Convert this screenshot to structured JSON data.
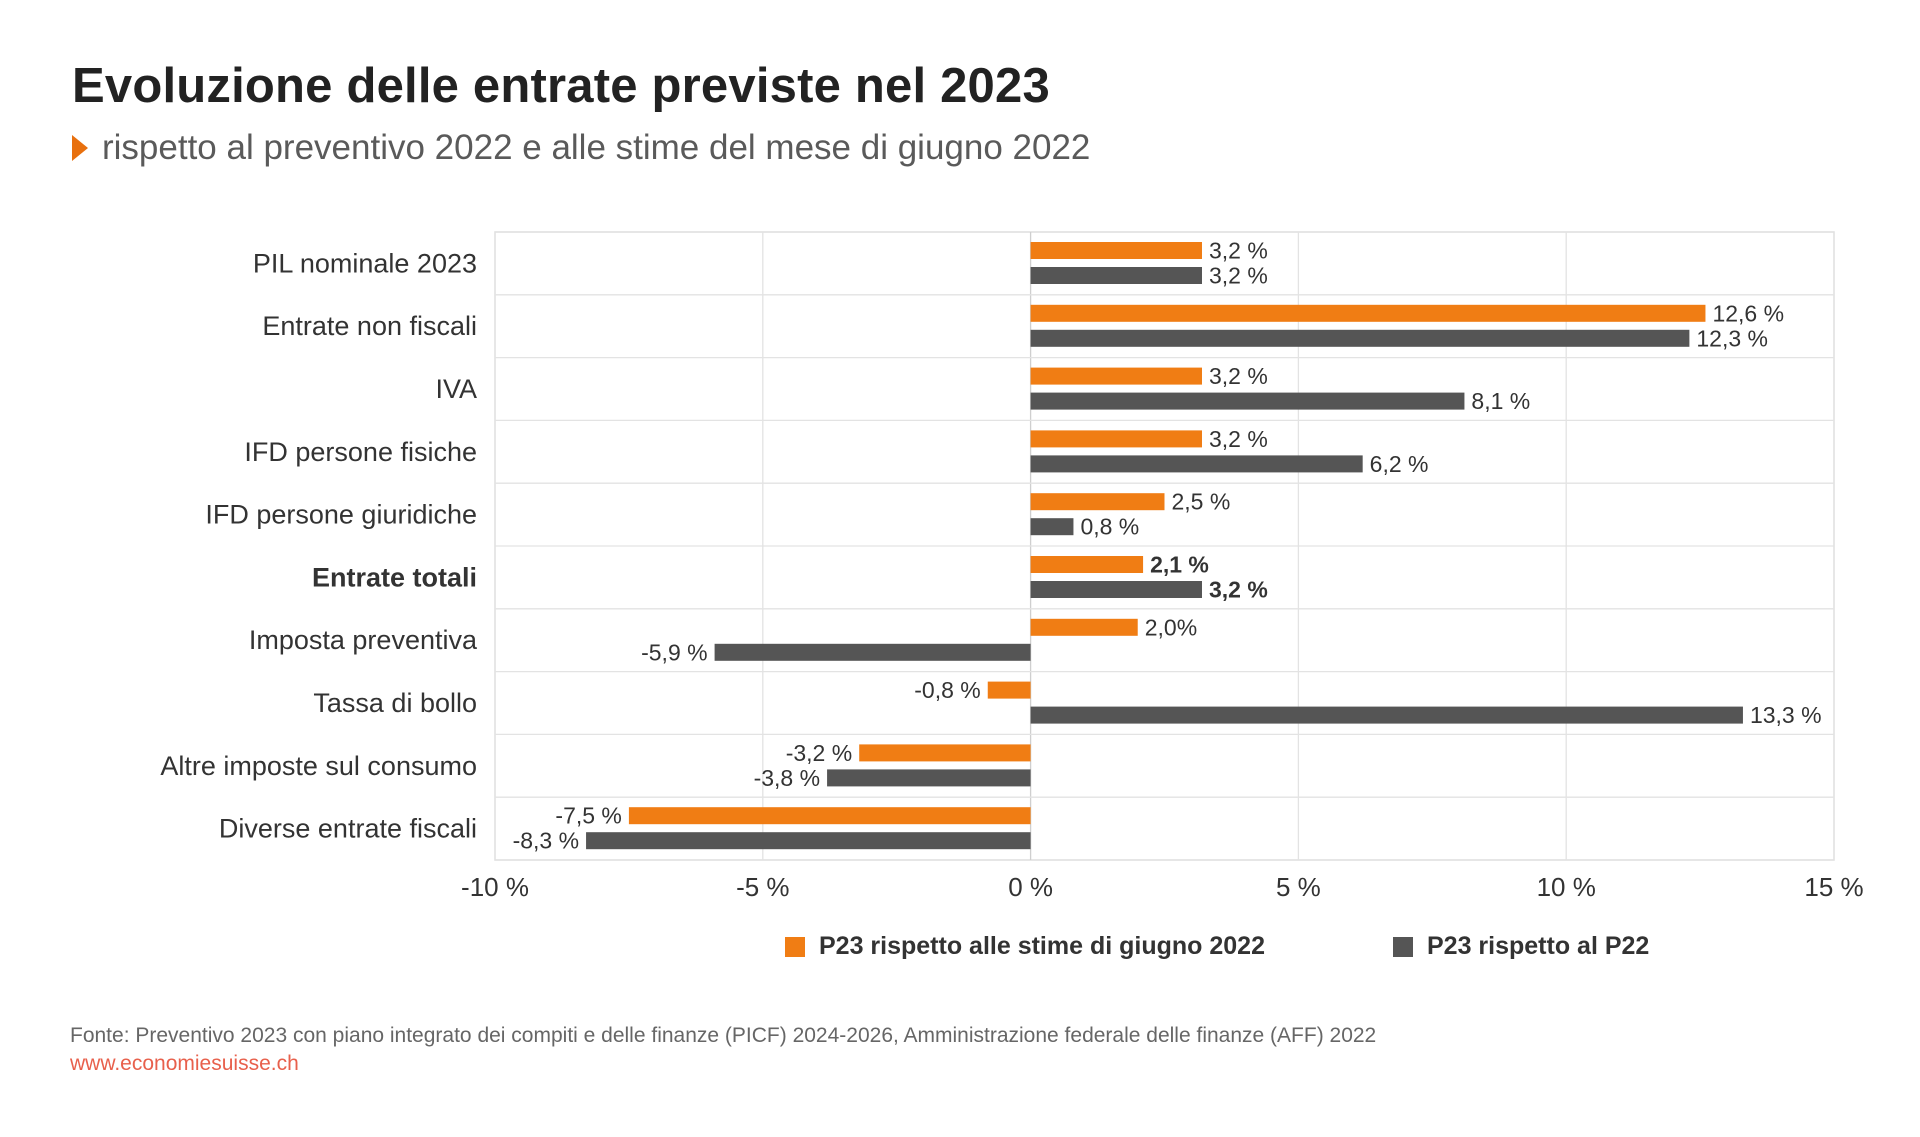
{
  "title": "Evoluzione delle entrate previste nel 2023",
  "subtitle": "rispetto al preventivo 2022 e alle stime del mese di giugno 2022",
  "source": "Fonte: Preventivo 2023 con piano integrato dei compiti e delle finanze (PICF) 2024-2026, Amministrazione federale delle finanze (AFF) 2022",
  "website": "www.economiesuisse.ch",
  "colors": {
    "accent": "#e8700e",
    "series1": "#f07d14",
    "series2": "#555555"
  },
  "chart_data": {
    "type": "bar",
    "orientation": "horizontal",
    "categories": [
      "PIL nominale 2023",
      "Entrate non fiscali",
      "IVA",
      "IFD persone fisiche",
      "IFD persone giuridiche",
      "Entrate totali",
      "Imposta preventiva",
      "Tassa di bollo",
      "Altre imposte sul consumo",
      "Diverse entrate fiscali"
    ],
    "bold_category": "Entrate totali",
    "series": [
      {
        "name": "P23 rispetto alle stime di giugno 2022",
        "color": "#f07d14",
        "values": [
          3.2,
          12.6,
          3.2,
          3.2,
          2.5,
          2.1,
          2.0,
          -0.8,
          -3.2,
          -7.5
        ],
        "labels": [
          "3,2 %",
          "12,6 %",
          "3,2 %",
          "3,2 %",
          "2,5 %",
          "2,1 %",
          "2,0%",
          "-0,8 %",
          "-3,2 %",
          "-7,5 %"
        ]
      },
      {
        "name": "P23 rispetto al P22",
        "color": "#555555",
        "values": [
          3.2,
          12.3,
          8.1,
          6.2,
          0.8,
          3.2,
          -5.9,
          13.3,
          -3.8,
          -8.3
        ],
        "labels": [
          "3,2 %",
          "12,3 %",
          "8,1 %",
          "6,2 %",
          "0,8 %",
          "3,2 %",
          "-5,9 %",
          "13,3 %",
          "-3,8 %",
          "-8,3 %"
        ]
      }
    ],
    "xlim": [
      -10,
      15
    ],
    "xticks": [
      -10,
      -5,
      0,
      5,
      10,
      15
    ],
    "xtick_labels": [
      "-10 %",
      "-5 %",
      "0 %",
      "5 %",
      "10 %",
      "15 %"
    ],
    "grid": true,
    "legend_position": "bottom"
  }
}
